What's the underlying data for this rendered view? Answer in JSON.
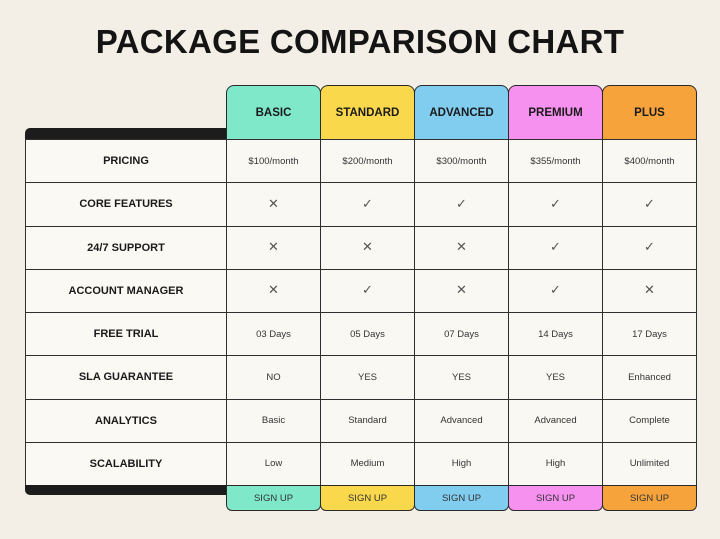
{
  "title": "PACKAGE COMPARISON CHART",
  "plans": [
    {
      "name": "BASIC",
      "color": "#7fe8c9"
    },
    {
      "name": "STANDARD",
      "color": "#f9d84c"
    },
    {
      "name": "ADVANCED",
      "color": "#80cdf0"
    },
    {
      "name": "PREMIUM",
      "color": "#f791ef"
    },
    {
      "name": "PLUS",
      "color": "#f7a33c"
    }
  ],
  "rows": [
    {
      "label": "PRICING",
      "cells": [
        "$100/month",
        "$200/month",
        "$300/month",
        "$355/month",
        "$400/month"
      ]
    },
    {
      "label": "CORE FEATURES",
      "cells": [
        "✕",
        "✓",
        "✓",
        "✓",
        "✓"
      ]
    },
    {
      "label": "24/7 SUPPORT",
      "cells": [
        "✕",
        "✕",
        "✕",
        "✓",
        "✓"
      ]
    },
    {
      "label": "ACCOUNT MANAGER",
      "cells": [
        "✕",
        "✓",
        "✕",
        "✓",
        "✕"
      ]
    },
    {
      "label": "FREE TRIAL",
      "cells": [
        "03 Days",
        "05 Days",
        "07 Days",
        "14 Days",
        "17 Days"
      ]
    },
    {
      "label": "SLA GUARANTEE",
      "cells": [
        "NO",
        "YES",
        "YES",
        "YES",
        "Enhanced"
      ]
    },
    {
      "label": "ANALYTICS",
      "cells": [
        "Basic",
        "Standard",
        "Advanced",
        "Advanced",
        "Complete"
      ]
    },
    {
      "label": "SCALABILITY",
      "cells": [
        "Low",
        "Medium",
        "High",
        "High",
        "Unlimited"
      ]
    }
  ],
  "footer": [
    "SIGN UP",
    "SIGN UP",
    "SIGN UP",
    "SIGN UP",
    "SIGN UP"
  ]
}
